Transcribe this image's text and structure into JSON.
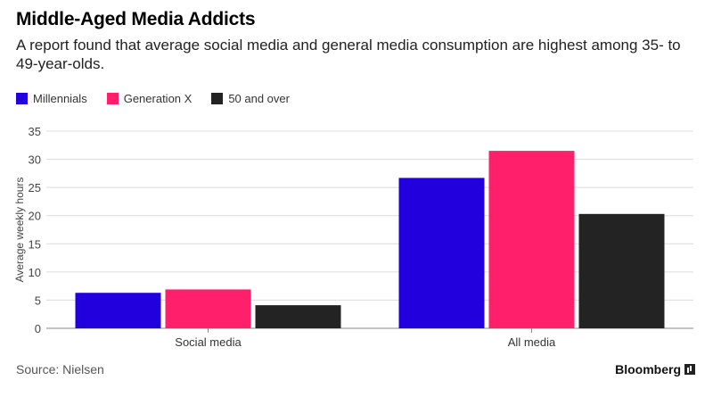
{
  "header": {
    "title": "Middle-Aged Media Addicts",
    "subtitle": "A report found that average social media and general media consumption are highest among 35- to 49-year-olds."
  },
  "footer": {
    "source": "Source: Nielsen",
    "brand": "Bloomberg"
  },
  "colors": {
    "millennials": "#2200dd",
    "generation_x": "#ff1f6b",
    "fifty_over": "#232323",
    "grid": "#dcdcdc"
  },
  "chart_data": {
    "type": "bar",
    "title": "Middle-Aged Media Addicts",
    "xlabel": "",
    "ylabel": "Average weekly hours",
    "ylim": [
      0,
      35
    ],
    "yticks": [
      0,
      5,
      10,
      15,
      20,
      25,
      30,
      35
    ],
    "categories": [
      "Social media",
      "All media"
    ],
    "legend_position": "top-left",
    "grid": true,
    "series": [
      {
        "name": "Millennials",
        "color": "#2200dd",
        "values": [
          6.3,
          26.7
        ]
      },
      {
        "name": "Generation X",
        "color": "#ff1f6b",
        "values": [
          6.9,
          31.5
        ]
      },
      {
        "name": "50 and over",
        "color": "#232323",
        "values": [
          4.1,
          20.3
        ]
      }
    ]
  }
}
